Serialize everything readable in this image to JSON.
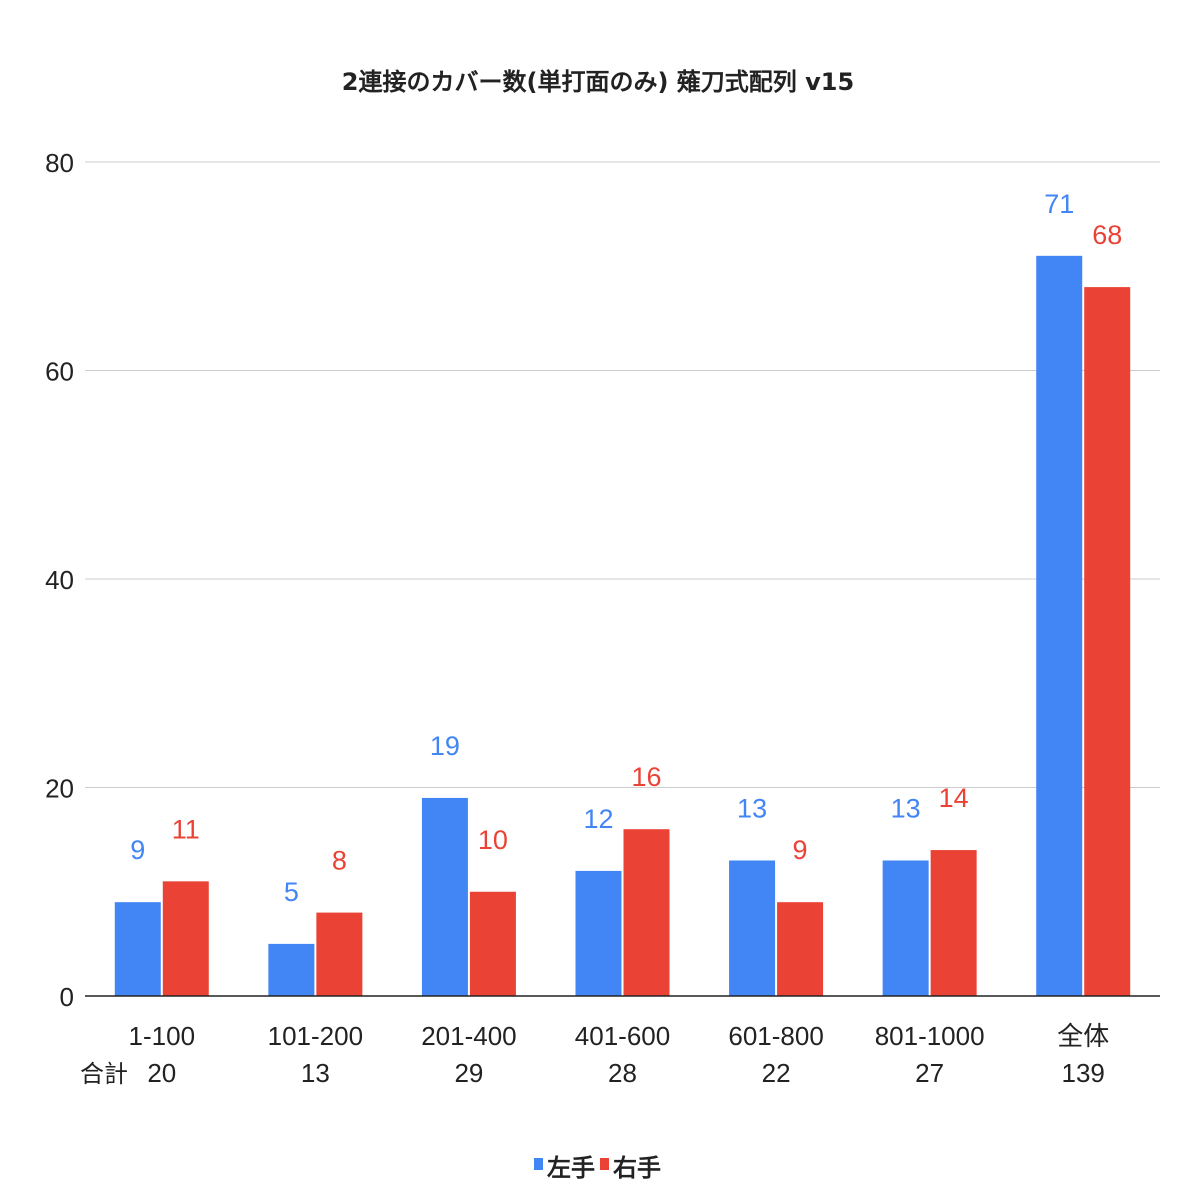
{
  "chart_data": {
    "type": "bar",
    "title": "2連接のカバー数(単打面のみ) 薙刀式配列 v15",
    "categories": [
      "1-100",
      "101-200",
      "201-400",
      "401-600",
      "601-800",
      "801-1000",
      "全体"
    ],
    "totals_label": "合計",
    "totals": [
      "20",
      "13",
      "29",
      "28",
      "22",
      "27",
      "139"
    ],
    "series": [
      {
        "name": "左手",
        "color": "#4285f4",
        "values": [
          9,
          5,
          19,
          12,
          13,
          13,
          71
        ]
      },
      {
        "name": "右手",
        "color": "#ea4335",
        "values": [
          11,
          8,
          10,
          16,
          9,
          14,
          68
        ]
      }
    ],
    "ylim": [
      0,
      80
    ],
    "yticks": [
      0,
      20,
      40,
      60,
      80
    ],
    "grid": true,
    "legend_position": "bottom"
  }
}
